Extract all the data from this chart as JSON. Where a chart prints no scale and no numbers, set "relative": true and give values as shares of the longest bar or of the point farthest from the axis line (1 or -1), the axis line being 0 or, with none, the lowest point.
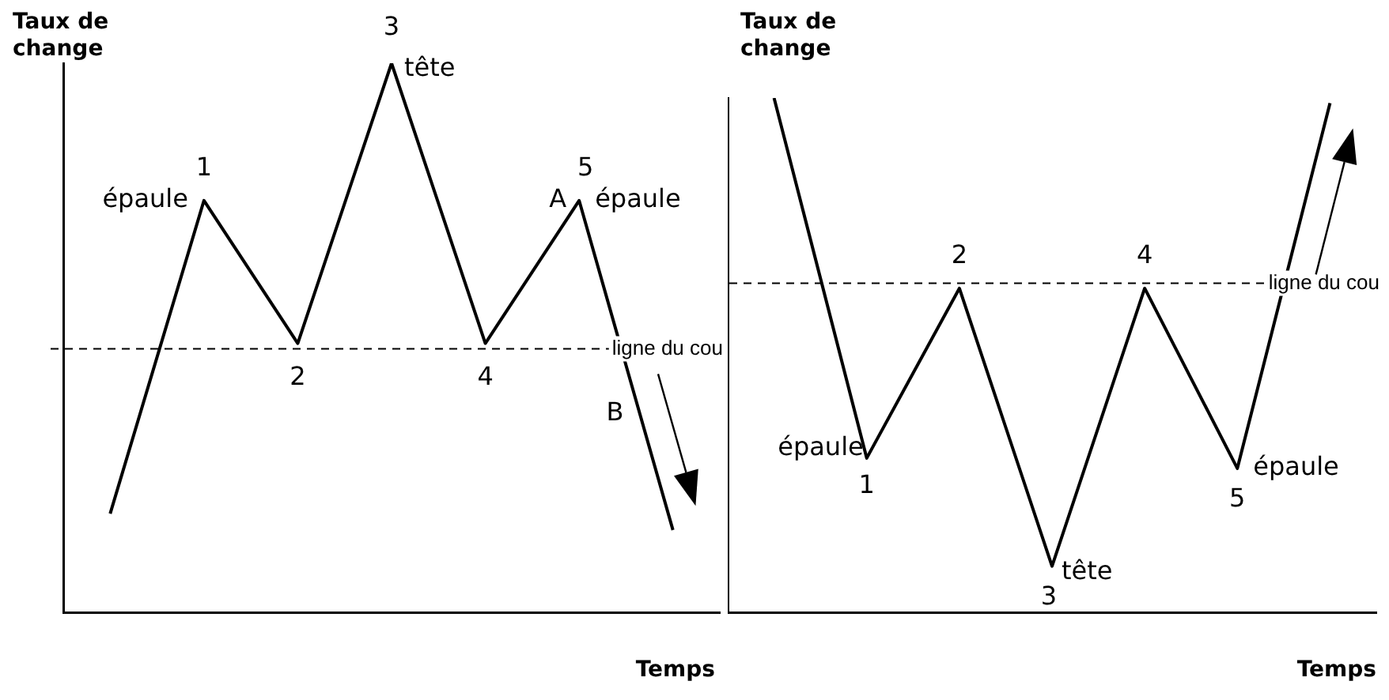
{
  "chart_data": [
    {
      "type": "line",
      "relative": true,
      "ylabel": "Taux de change",
      "xlabel": "Temps",
      "marker": "none",
      "line_style": "solid",
      "legend": false,
      "grid": false,
      "categories": [
        null,
        null,
        null,
        null,
        null,
        null,
        null
      ],
      "series": [
        {
          "color": "#000000",
          "values": [
            0.18,
            0.75,
            0.49,
            1,
            0.49,
            0.75,
            0.15
          ]
        }
      ],
      "ref_lines": [
        {
          "axis": "y",
          "value": 0.48,
          "label": "ligne du cou",
          "line_style": "dashed",
          "color": "#000000"
        }
      ],
      "annotations": [
        "épaule",
        "1",
        "2",
        "3",
        "tête",
        "4",
        "A",
        "5",
        "épaule",
        "B"
      ]
    },
    {
      "type": "line",
      "relative": true,
      "ylabel": "Taux de change",
      "xlabel": "Temps",
      "marker": "none",
      "line_style": "solid",
      "legend": false,
      "grid": false,
      "categories": [
        null,
        null,
        null,
        null,
        null,
        null,
        null
      ],
      "series": [
        {
          "color": "#000000",
          "values": [
            1,
            0.3,
            0.63,
            0.09,
            0.63,
            0.28,
            0.99
          ]
        }
      ],
      "ref_lines": [
        {
          "axis": "y",
          "value": 0.64,
          "label": "ligne du cou",
          "line_style": "dashed",
          "color": "#000000"
        }
      ],
      "annotations": [
        "2",
        "4",
        "épaule",
        "1",
        "tête",
        "3",
        "5",
        "épaule"
      ]
    }
  ]
}
